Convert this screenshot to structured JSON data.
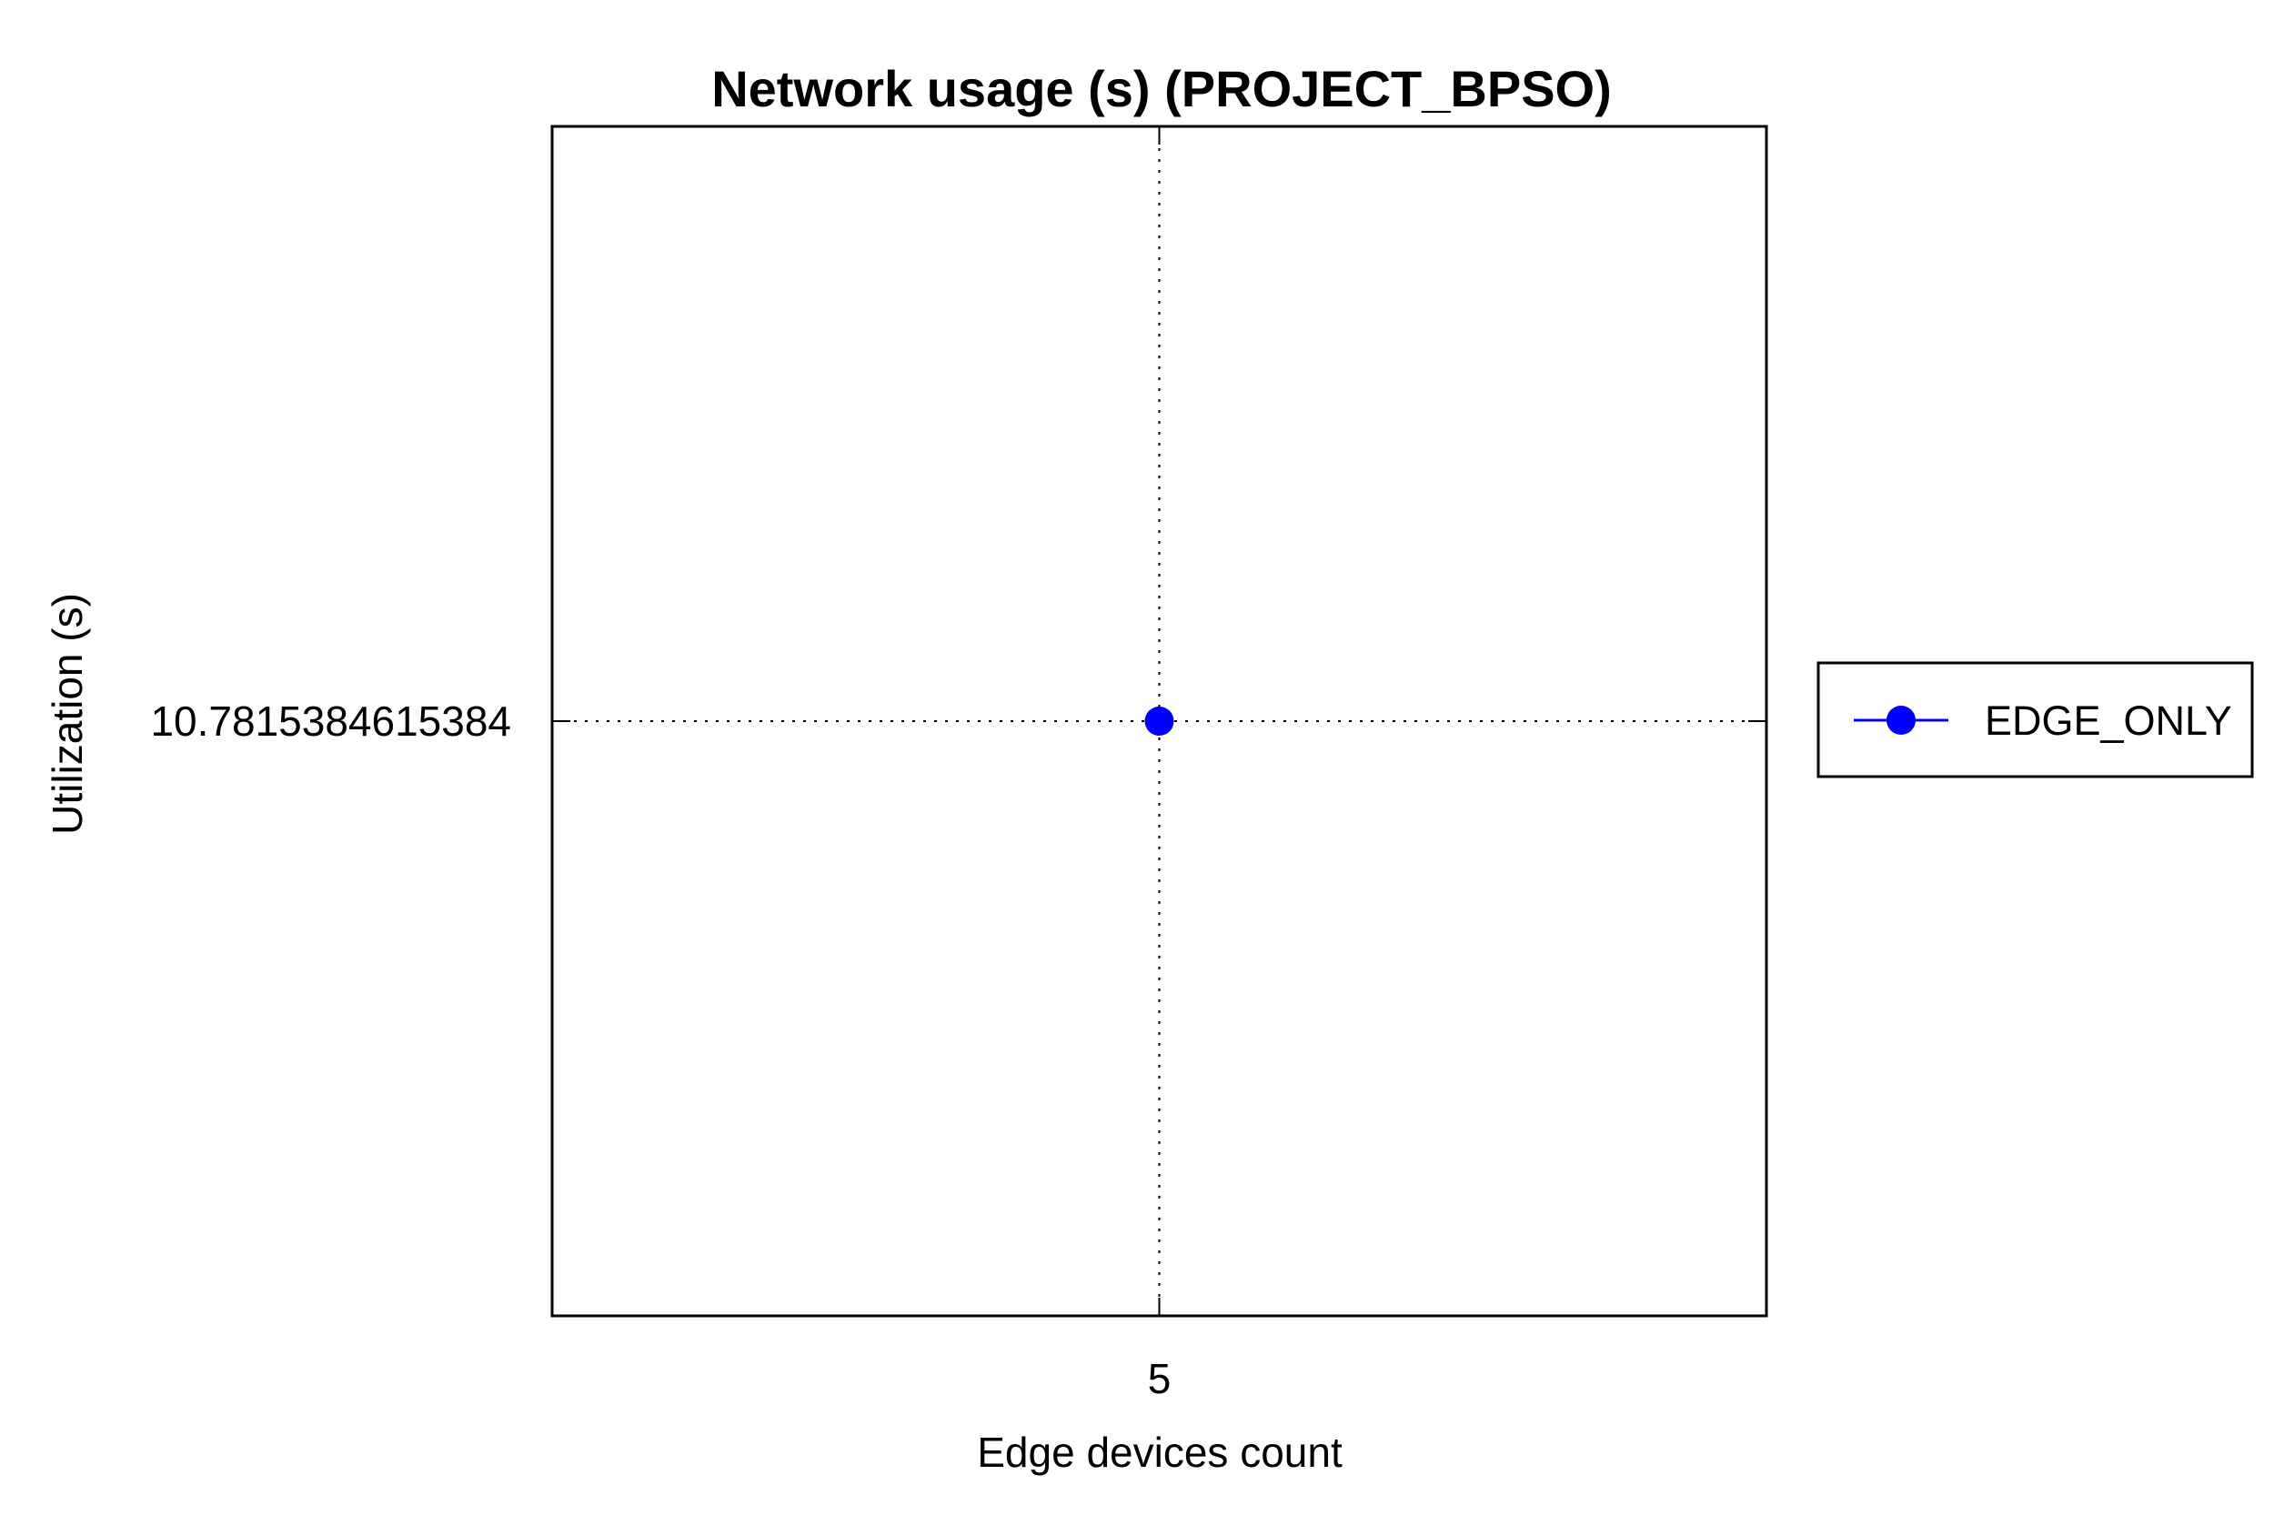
{
  "chart_data": {
    "type": "line",
    "title": "Network usage (s) (PROJECT_BPSO)",
    "xlabel": "Edge devices count",
    "ylabel": "Utilization (s)",
    "x_tick_labels": [
      "5"
    ],
    "y_tick_labels": [
      "10.7815384615384"
    ],
    "x": [
      5
    ],
    "xlim": [
      4,
      6
    ],
    "ylim": [
      9.7815384615384,
      11.7815384615384
    ],
    "grid": true,
    "legend_position": "right",
    "series": [
      {
        "name": "EDGE_ONLY",
        "color": "#0000ff",
        "marker": "circle",
        "x": [
          5
        ],
        "values": [
          10.7815384615384
        ]
      }
    ]
  }
}
